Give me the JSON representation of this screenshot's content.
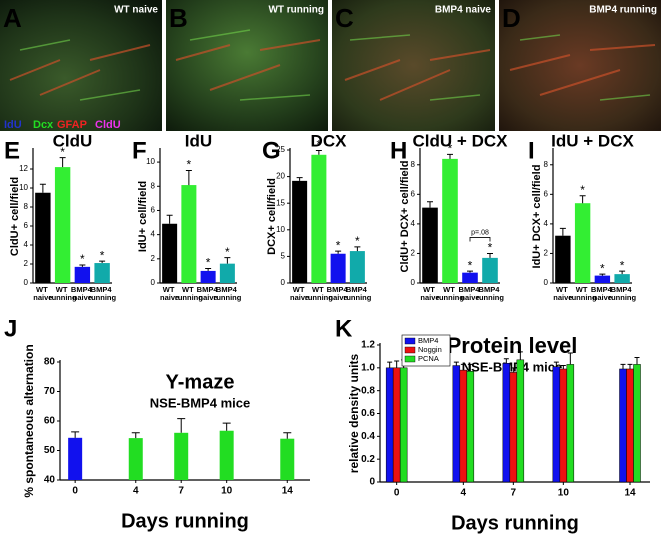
{
  "images": [
    {
      "letter": "A",
      "label": "WT naive"
    },
    {
      "letter": "B",
      "label": "WT running"
    },
    {
      "letter": "C",
      "label": "BMP4 naive"
    },
    {
      "letter": "D",
      "label": "BMP4 running"
    }
  ],
  "channels": [
    {
      "name": "IdU",
      "color": "#2233cc"
    },
    {
      "name": "Dcx",
      "color": "#22dd22"
    },
    {
      "name": "GFAP",
      "color": "#ee2222"
    },
    {
      "name": "CldU",
      "color": "#ee33ee"
    }
  ],
  "chart_data": [
    {
      "type": "bar",
      "panel": "E",
      "title": "CldU",
      "y_label": "CldU+ cell/field",
      "categories": [
        "WT naive",
        "WT running",
        "BMP4 naive",
        "BMP4 running"
      ],
      "values": [
        9.5,
        12.2,
        1.7,
        2.1
      ],
      "errors": [
        0.9,
        1.0,
        0.2,
        0.2
      ],
      "stars": [
        null,
        "*",
        "*",
        "*"
      ],
      "colors": [
        "#000000",
        "#33ee33",
        "#1111ee",
        "#11aaaa"
      ],
      "ylim": [
        0,
        14
      ],
      "yticks": [
        0,
        2,
        4,
        6,
        8,
        10,
        12
      ]
    },
    {
      "type": "bar",
      "panel": "F",
      "title": "IdU",
      "y_label": "IdU+ cell/field",
      "categories": [
        "WT naive",
        "WT running",
        "BMP4 naive",
        "BMP4 running"
      ],
      "values": [
        4.9,
        8.1,
        1.0,
        1.6
      ],
      "errors": [
        0.7,
        1.2,
        0.2,
        0.5
      ],
      "stars": [
        null,
        "*",
        "*",
        "*"
      ],
      "colors": [
        "#000000",
        "#33ee33",
        "#1111ee",
        "#11aaaa"
      ],
      "ylim": [
        0,
        11
      ],
      "yticks": [
        0,
        2,
        4,
        6,
        8,
        10
      ]
    },
    {
      "type": "bar",
      "panel": "G",
      "title": "DCX",
      "y_label": "DCX+ cell/field",
      "categories": [
        "WT naive",
        "WT running",
        "BMP4 naive",
        "BMP4 running"
      ],
      "values": [
        19.2,
        24.1,
        5.5,
        6.0
      ],
      "errors": [
        0.6,
        0.8,
        0.5,
        0.8
      ],
      "stars": [
        null,
        "*",
        "*",
        "*"
      ],
      "colors": [
        "#000000",
        "#33ee33",
        "#1111ee",
        "#11aaaa"
      ],
      "ylim": [
        0,
        25
      ],
      "yticks": [
        0,
        5,
        10,
        15,
        20,
        25
      ]
    },
    {
      "type": "bar",
      "panel": "H",
      "title": "CldU + DCX",
      "y_label": "CldU+ DCX+ cell/field",
      "categories": [
        "WT naive",
        "WT running",
        "BMP4 naive",
        "BMP4 running"
      ],
      "values": [
        5.1,
        8.4,
        0.7,
        1.7
      ],
      "errors": [
        0.4,
        0.3,
        0.1,
        0.3
      ],
      "stars": [
        null,
        "*",
        "*",
        "*"
      ],
      "colors": [
        "#000000",
        "#33ee33",
        "#1111ee",
        "#11aaaa"
      ],
      "annotation": "p=.08",
      "ylim": [
        0,
        9
      ],
      "yticks": [
        0,
        2,
        4,
        6,
        8
      ]
    },
    {
      "type": "bar",
      "panel": "I",
      "title": "IdU + DCX",
      "y_label": "IdU+ DCX+ cell/field",
      "categories": [
        "WT naive",
        "WT running",
        "BMP4 naive",
        "BMP4 running"
      ],
      "values": [
        3.2,
        5.4,
        0.5,
        0.6
      ],
      "errors": [
        0.5,
        0.5,
        0.1,
        0.2
      ],
      "stars": [
        null,
        "*",
        "*",
        "*"
      ],
      "colors": [
        "#000000",
        "#33ee33",
        "#1111ee",
        "#11aaaa"
      ],
      "ylim": [
        0,
        9
      ],
      "yticks": [
        0,
        2,
        4,
        6,
        8
      ]
    },
    {
      "type": "bar",
      "panel": "J",
      "title": "Y-maze",
      "subtitle": "NSE-BMP4 mice",
      "y_label": "% spontaneous alternation",
      "x_label": "Days running",
      "x": [
        0,
        4,
        7,
        10,
        14
      ],
      "values": [
        54.3,
        54.2,
        56,
        56.7,
        54
      ],
      "errors": [
        2,
        1.8,
        4.8,
        2.6,
        2
      ],
      "colors": [
        "#1111ee",
        "#22dd22",
        "#22dd22",
        "#22dd22",
        "#22dd22"
      ],
      "xlim": [
        -1,
        15.5
      ],
      "xticks": [
        0,
        4,
        7,
        10,
        14
      ],
      "ylim": [
        40,
        80
      ],
      "yticks": [
        40,
        50,
        60,
        70,
        80
      ]
    },
    {
      "type": "bar",
      "panel": "K",
      "title": "Protein level",
      "subtitle": "NSE-BMP4 mice",
      "y_label": "relative density units",
      "x_label": "Days running",
      "x": [
        0,
        4,
        7,
        10,
        14
      ],
      "series": [
        {
          "name": "BMP4",
          "color": "#1111ee",
          "values": [
            1.0,
            1.02,
            1.04,
            1.01,
            0.99
          ],
          "errors": [
            0.05,
            0.03,
            0.04,
            0.04,
            0.04
          ]
        },
        {
          "name": "Noggin",
          "color": "#ee1111",
          "values": [
            1.0,
            0.98,
            0.96,
            0.99,
            0.99
          ],
          "errors": [
            0.06,
            0.05,
            0.04,
            0.03,
            0.04
          ]
        },
        {
          "name": "PCNA",
          "color": "#22dd22",
          "values": [
            1.0,
            0.97,
            1.07,
            1.03,
            1.03
          ],
          "errors": [
            0.07,
            0.06,
            0.07,
            0.1,
            0.06
          ]
        }
      ],
      "legend": "upper left",
      "xlim": [
        -1,
        15.2
      ],
      "xticks": [
        0,
        4,
        7,
        10,
        14
      ],
      "ylim": [
        0,
        1.2
      ],
      "yticks": [
        0,
        0.2,
        0.4,
        0.6,
        0.8,
        {
          "value": 1,
          "label": "1.0"
        },
        1.2
      ]
    }
  ]
}
